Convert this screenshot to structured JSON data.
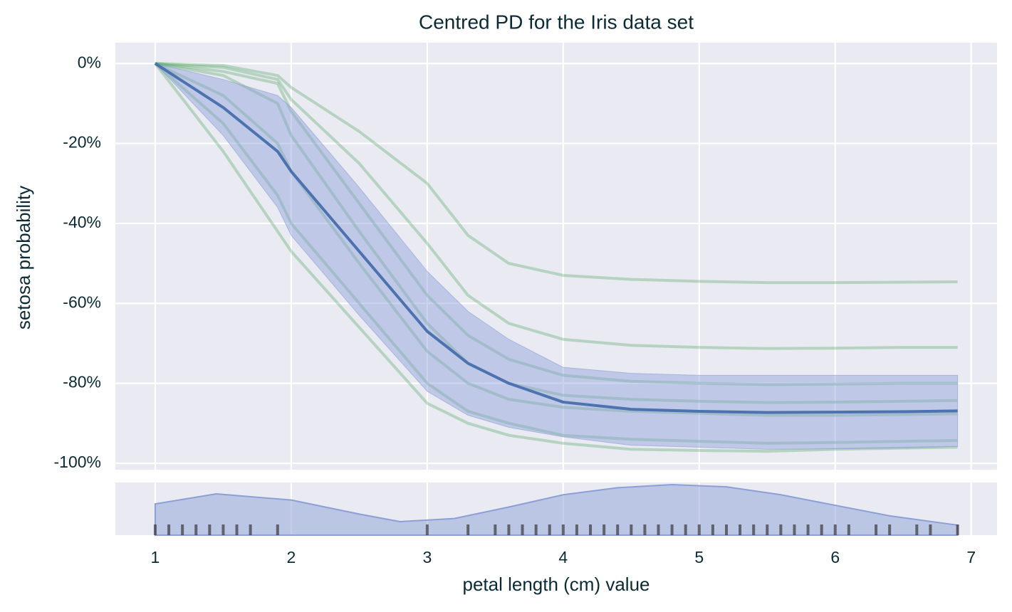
{
  "chart_data": {
    "type": "line",
    "title": "Centred PD for the Iris data set",
    "xlabel": "petal length (cm) value",
    "ylabel": "setosa probability",
    "x": [
      1,
      1.5,
      1.9,
      2.0,
      2.5,
      3.0,
      3.3,
      3.6,
      4.0,
      4.5,
      5.0,
      5.5,
      6.0,
      6.5,
      6.9
    ],
    "values": [
      0,
      -11,
      -22,
      -27,
      -47,
      -67,
      -75,
      -80,
      -84.7,
      -86.5,
      -87,
      -87.3,
      -87.2,
      -87.1,
      -86.9
    ],
    "color": "#4c72b0",
    "band_upper": [
      0,
      -4,
      -8,
      -11,
      -31,
      -52,
      -62,
      -69,
      -76,
      -77.5,
      -78,
      -78,
      -78,
      -78,
      -78
    ],
    "band_lower": [
      0,
      -18,
      -36,
      -43,
      -63,
      -82,
      -88,
      -91,
      -93.4,
      -95.5,
      -96,
      -96.5,
      -96.4,
      -96.2,
      -95.8
    ],
    "band_color": "#8c9fd6",
    "ice_color": "#55a868",
    "ice_lines": [
      [
        0,
        -22,
        -42,
        -47,
        -66,
        -85,
        -90,
        -93,
        -95,
        -96.5,
        -96.8,
        -97,
        -96.5,
        -96.2,
        -96
      ],
      [
        0,
        -15,
        -33,
        -40,
        -60,
        -80,
        -87,
        -90,
        -93,
        -94,
        -94.5,
        -95,
        -94.8,
        -94.5,
        -94.3
      ],
      [
        0,
        -8,
        -20,
        -27,
        -50,
        -72,
        -80,
        -84,
        -86,
        -87,
        -87.5,
        -88,
        -88,
        -87.8,
        -87.6
      ],
      [
        0,
        -3,
        -10,
        -18,
        -42,
        -65,
        -75,
        -80,
        -83,
        -84,
        -84.5,
        -84.8,
        -84.7,
        -84.5,
        -84.3
      ],
      [
        0,
        -2,
        -5,
        -12,
        -35,
        -58,
        -68,
        -74,
        -78,
        -79.5,
        -80,
        -80.3,
        -80.2,
        -80,
        -80
      ],
      [
        0,
        -1,
        -4,
        -9,
        -25,
        -45,
        -58,
        -65,
        -69,
        -70.5,
        -71,
        -71.3,
        -71.2,
        -71,
        -71
      ],
      [
        0,
        -0.5,
        -3,
        -6,
        -17,
        -30,
        -43,
        -50,
        -53,
        -54,
        -54.5,
        -54.8,
        -54.8,
        -54.7,
        -54.6
      ]
    ],
    "xlim": [
      0.707,
      7.19
    ],
    "ylim": [
      -101.6,
      5.2
    ],
    "xticks": [
      1,
      2,
      3,
      4,
      5,
      6,
      7
    ],
    "yticks": [
      {
        "value": 0,
        "label": "0%"
      },
      {
        "value": -20,
        "label": "-20%"
      },
      {
        "value": -40,
        "label": "-40%"
      },
      {
        "value": -60,
        "label": "-60%"
      },
      {
        "value": -80,
        "label": "-80%"
      },
      {
        "value": -100,
        "label": "-100%"
      }
    ],
    "grid": true,
    "density": {
      "x": [
        1,
        1.45,
        2,
        2.5,
        2.8,
        3.2,
        3.6,
        4,
        4.4,
        4.8,
        5.2,
        5.6,
        6,
        6.4,
        6.9
      ],
      "values": [
        0.178,
        0.235,
        0.2,
        0.12,
        0.077,
        0.095,
        0.16,
        0.23,
        0.27,
        0.288,
        0.275,
        0.23,
        0.17,
        0.11,
        0.057
      ],
      "ylim": [
        0,
        0.3
      ],
      "color": "#8c9fd6"
    },
    "rug": [
      1,
      1.1,
      1.2,
      1.3,
      1.4,
      1.5,
      1.6,
      1.7,
      1.9,
      3,
      3.3,
      3.5,
      3.6,
      3.7,
      3.8,
      3.9,
      4,
      4.1,
      4.2,
      4.3,
      4.4,
      4.5,
      4.6,
      4.7,
      4.8,
      4.9,
      5,
      5.1,
      5.2,
      5.3,
      5.4,
      5.5,
      5.6,
      5.7,
      5.8,
      5.9,
      6,
      6.1,
      6.3,
      6.4,
      6.6,
      6.7,
      6.9
    ],
    "rug_color": "#222222"
  }
}
